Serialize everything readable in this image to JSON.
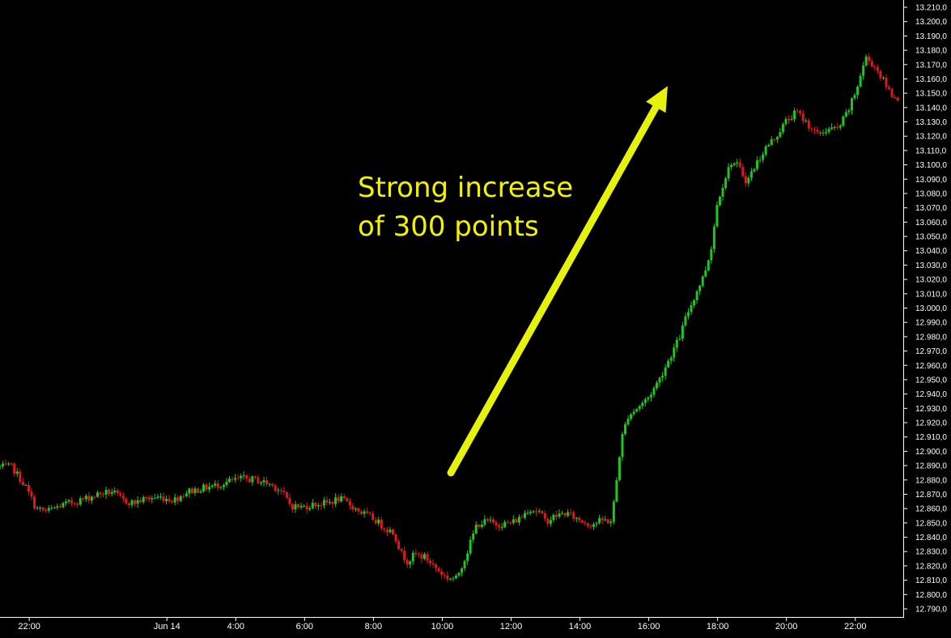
{
  "chart_data": {
    "type": "candlestick",
    "title": "",
    "colors": {
      "up": "#1fc61f",
      "down": "#e01818",
      "background": "#000000",
      "axis_text": "#ffffff",
      "arrow": "#e6f20a",
      "annotation": "#f2f200"
    },
    "y_axis": {
      "side": "right",
      "min": 12790,
      "max": 13210,
      "step": 10
    },
    "y_ticks": [
      "13.210,0",
      "13.200,0",
      "13.190,0",
      "13.180,0",
      "13.170,0",
      "13.160,0",
      "13.150,0",
      "13.140,0",
      "13.130,0",
      "13.120,0",
      "13.110,0",
      "13.100,0",
      "13.090,0",
      "13.080,0",
      "13.070,0",
      "13.060,0",
      "13.050,0",
      "13.040,0",
      "13.030,0",
      "13.020,0",
      "13.010,0",
      "13.000,0",
      "12.990,0",
      "12.980,0",
      "12.970,0",
      "12.960,0",
      "12.950,0",
      "12.940,0",
      "12.930,0",
      "12.920,0",
      "12.910,0",
      "12.900,0",
      "12.890,0",
      "12.880,0",
      "12.870,0",
      "12.860,0",
      "12.850,0",
      "12.840,0",
      "12.830,0",
      "12.820,0",
      "12.810,0",
      "12.800,0",
      "12.790,0"
    ],
    "x_ticks": [
      "22:00",
      "Jun 14",
      "4:00",
      "6:00",
      "8:00",
      "10:00",
      "12:00",
      "14:00",
      "16:00",
      "18:00",
      "20:00",
      "22:00"
    ],
    "x_tick_hours": [
      22,
      26,
      28,
      30,
      32,
      34,
      36,
      38,
      40,
      42,
      44,
      46
    ],
    "x_range_hours": [
      21.15,
      47.3
    ],
    "candle_minutes": 5,
    "close_path": [
      [
        21.15,
        12889
      ],
      [
        21.5,
        12889
      ],
      [
        21.9,
        12875
      ],
      [
        22.2,
        12860
      ],
      [
        22.5,
        12858
      ],
      [
        22.9,
        12862
      ],
      [
        23.5,
        12866
      ],
      [
        24.0,
        12870
      ],
      [
        24.4,
        12872
      ],
      [
        24.7,
        12866
      ],
      [
        25.0,
        12864
      ],
      [
        25.4,
        12867
      ],
      [
        25.8,
        12868
      ],
      [
        26.2,
        12866
      ],
      [
        26.6,
        12872
      ],
      [
        27.0,
        12874
      ],
      [
        27.4,
        12876
      ],
      [
        27.8,
        12879
      ],
      [
        28.2,
        12881
      ],
      [
        28.6,
        12880
      ],
      [
        29.0,
        12877
      ],
      [
        29.3,
        12873
      ],
      [
        29.6,
        12862
      ],
      [
        29.9,
        12861
      ],
      [
        30.3,
        12863
      ],
      [
        30.7,
        12864
      ],
      [
        31.0,
        12867
      ],
      [
        31.3,
        12863
      ],
      [
        31.6,
        12858
      ],
      [
        32.0,
        12853
      ],
      [
        32.3,
        12847
      ],
      [
        32.6,
        12843
      ],
      [
        32.8,
        12829
      ],
      [
        33.0,
        12823
      ],
      [
        33.2,
        12828
      ],
      [
        33.5,
        12826
      ],
      [
        33.8,
        12819
      ],
      [
        34.1,
        12812
      ],
      [
        34.4,
        12811
      ],
      [
        34.7,
        12828
      ],
      [
        35.0,
        12849
      ],
      [
        35.3,
        12851
      ],
      [
        35.6,
        12849
      ],
      [
        36.0,
        12850
      ],
      [
        36.3,
        12854
      ],
      [
        36.5,
        12860
      ],
      [
        36.8,
        12858
      ],
      [
        37.0,
        12851
      ],
      [
        37.3,
        12855
      ],
      [
        37.6,
        12857
      ],
      [
        37.9,
        12853
      ],
      [
        38.3,
        12849
      ],
      [
        38.7,
        12852
      ],
      [
        38.9,
        12851
      ],
      [
        39.0,
        12866
      ],
      [
        39.2,
        12908
      ],
      [
        39.4,
        12925
      ],
      [
        39.7,
        12931
      ],
      [
        40.0,
        12938
      ],
      [
        40.3,
        12950
      ],
      [
        40.6,
        12965
      ],
      [
        40.9,
        12980
      ],
      [
        41.1,
        12995
      ],
      [
        41.4,
        13012
      ],
      [
        41.6,
        13023
      ],
      [
        41.8,
        13040
      ],
      [
        42.0,
        13075
      ],
      [
        42.2,
        13090
      ],
      [
        42.4,
        13102
      ],
      [
        42.6,
        13099
      ],
      [
        42.85,
        13088
      ],
      [
        43.1,
        13100
      ],
      [
        43.4,
        13112
      ],
      [
        43.7,
        13120
      ],
      [
        44.0,
        13131
      ],
      [
        44.3,
        13137
      ],
      [
        44.6,
        13129
      ],
      [
        44.9,
        13121
      ],
      [
        45.2,
        13125
      ],
      [
        45.5,
        13125
      ],
      [
        45.8,
        13138
      ],
      [
        46.0,
        13150
      ],
      [
        46.3,
        13175
      ],
      [
        46.6,
        13168
      ],
      [
        46.9,
        13155
      ],
      [
        47.1,
        13148
      ],
      [
        47.3,
        13147
      ]
    ],
    "annotation": {
      "lines": [
        "Strong increase",
        "of 300 points"
      ]
    },
    "arrow": {
      "from": {
        "hour": 34.25,
        "price": 12885
      },
      "to": {
        "hour": 40.55,
        "price": 13155
      }
    }
  }
}
